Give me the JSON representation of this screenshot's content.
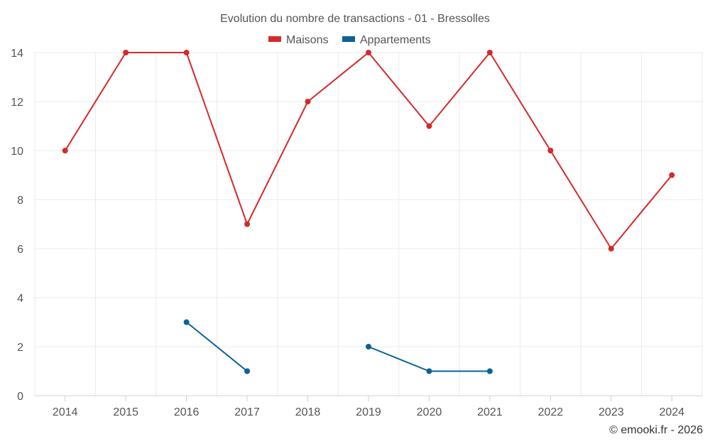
{
  "chart_data": {
    "type": "line",
    "title": "Evolution du nombre de transactions - 01 - Bressolles",
    "categories": [
      "2014",
      "2015",
      "2016",
      "2017",
      "2018",
      "2019",
      "2020",
      "2021",
      "2022",
      "2023",
      "2024"
    ],
    "series": [
      {
        "name": "Maisons",
        "color": "#d42a2a",
        "values": [
          10,
          14,
          14,
          7,
          12,
          14,
          11,
          14,
          10,
          6,
          9
        ]
      },
      {
        "name": "Appartements",
        "color": "#0b6296",
        "values": [
          null,
          null,
          3,
          1,
          null,
          2,
          1,
          1,
          null,
          null,
          null
        ]
      }
    ],
    "ylim": [
      0,
      14
    ],
    "yticks": [
      0,
      2,
      4,
      6,
      8,
      10,
      12,
      14
    ],
    "xlabel": "",
    "ylabel": "",
    "legend": "top-center",
    "grid": true
  },
  "credit": "© emooki.fr - 2026"
}
